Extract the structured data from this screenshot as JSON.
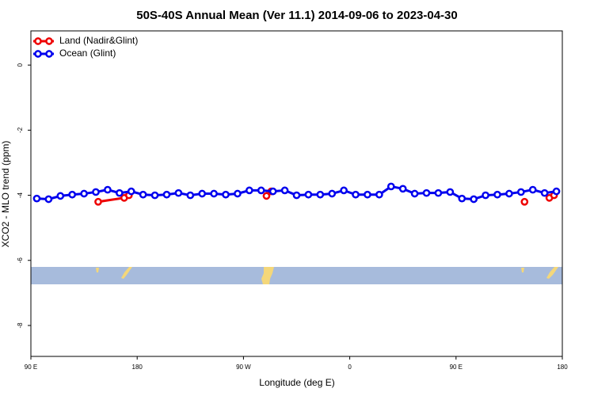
{
  "chart_data": {
    "type": "line",
    "title": "50S-40S Annual Mean (Ver 11.1)   2014-09-06 to 2023-04-30",
    "xlabel": "Longitude (deg E)",
    "ylabel": "XCO2 - MLO trend (ppm)",
    "xlim": [
      90,
      540
    ],
    "xticks": [
      {
        "value": 90,
        "label": "90 E"
      },
      {
        "value": 180,
        "label": "180"
      },
      {
        "value": 270,
        "label": "90 W"
      },
      {
        "value": 360,
        "label": "0"
      },
      {
        "value": 450,
        "label": "90 E"
      },
      {
        "value": 540,
        "label": "180"
      }
    ],
    "ylim": [
      -8.95,
      1.05
    ],
    "yticks": [
      0,
      -2,
      -4,
      -6,
      -8
    ],
    "legend": "top-left",
    "series": [
      {
        "name": "Land (Nadir&Glint)",
        "color": "#ee0000",
        "x": [
          147,
          169,
          173,
          null,
          289.5,
          293.5,
          null,
          508,
          null,
          529,
          533
        ],
        "values": [
          -4.2,
          -4.08,
          -4.0,
          null,
          -4.02,
          -3.88,
          null,
          -4.2,
          null,
          -4.08,
          -4.0
        ]
      },
      {
        "name": "Ocean (Glint)",
        "color": "#0000ee",
        "x": [
          95,
          105,
          115,
          125,
          135,
          145,
          155,
          165,
          175,
          185,
          195,
          205,
          215,
          225,
          235,
          245,
          255,
          265,
          275,
          285,
          295,
          305,
          315,
          325,
          335,
          345,
          355,
          365,
          375,
          385,
          395,
          405,
          415,
          425,
          435,
          445,
          455,
          465,
          475,
          485,
          495,
          505,
          515,
          525,
          535
        ],
        "values": [
          -4.1,
          -4.12,
          -4.02,
          -3.98,
          -3.95,
          -3.9,
          -3.83,
          -3.93,
          -3.88,
          -3.98,
          -4.0,
          -3.98,
          -3.93,
          -4.0,
          -3.95,
          -3.95,
          -3.98,
          -3.95,
          -3.85,
          -3.85,
          -3.88,
          -3.85,
          -4.0,
          -3.98,
          -3.98,
          -3.95,
          -3.85,
          -3.98,
          -3.98,
          -3.98,
          -3.73,
          -3.8,
          -3.95,
          -3.93,
          -3.93,
          -3.9,
          -4.1,
          -4.12,
          -4.0,
          -3.98,
          -3.95,
          -3.9,
          -3.83,
          -3.93,
          -3.88
        ]
      }
    ]
  }
}
